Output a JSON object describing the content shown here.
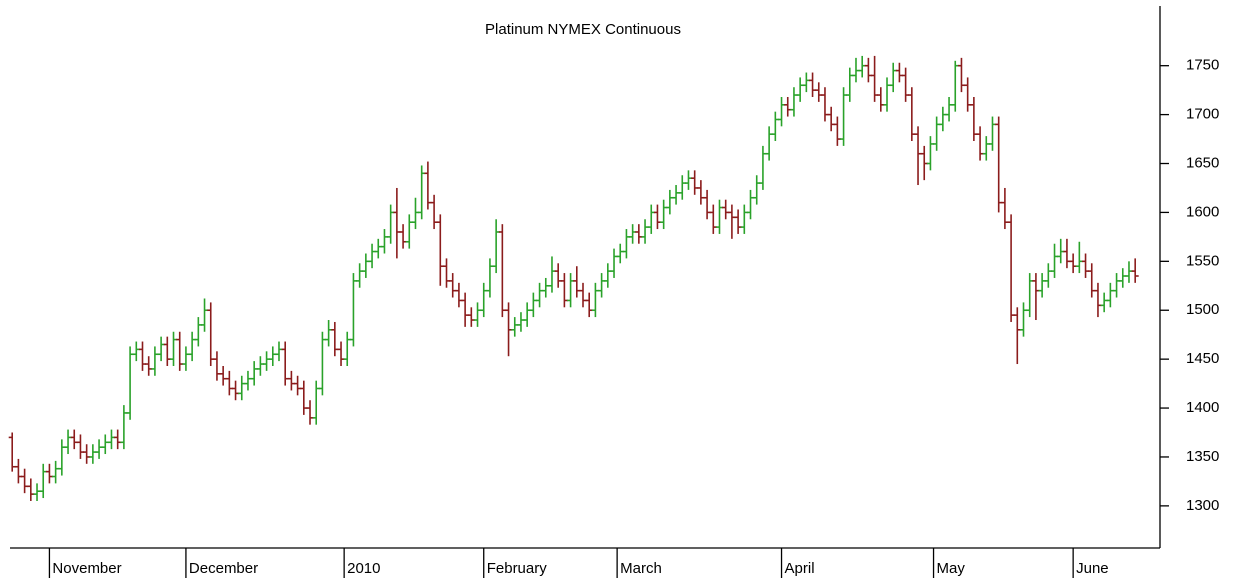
{
  "chart_data": {
    "type": "ohlc",
    "title": "Platinum NYMEX Continuous",
    "up_color": "#2aa22a",
    "down_color": "#8b1c1c",
    "xlim": [
      -1,
      185
    ],
    "xticks": [
      {
        "value": 6,
        "label": "November"
      },
      {
        "value": 28,
        "label": "December"
      },
      {
        "value": 53.5,
        "label": "2010"
      },
      {
        "value": 76,
        "label": "February"
      },
      {
        "value": 97.5,
        "label": "March"
      },
      {
        "value": 124,
        "label": "April"
      },
      {
        "value": 148.5,
        "label": "May"
      },
      {
        "value": 171,
        "label": "June"
      }
    ],
    "ylim": [
      1260,
      1810
    ],
    "yticks": [
      1300,
      1350,
      1400,
      1450,
      1500,
      1550,
      1600,
      1650,
      1700,
      1750
    ],
    "ohlc": [
      [
        1370,
        1375,
        1335,
        1340
      ],
      [
        1340,
        1348,
        1323,
        1330
      ],
      [
        1330,
        1338,
        1313,
        1320
      ],
      [
        1320,
        1328,
        1305,
        1312
      ],
      [
        1312,
        1323,
        1305,
        1315
      ],
      [
        1315,
        1343,
        1308,
        1335
      ],
      [
        1335,
        1343,
        1323,
        1330
      ],
      [
        1330,
        1346,
        1323,
        1338
      ],
      [
        1338,
        1368,
        1331,
        1360
      ],
      [
        1360,
        1378,
        1353,
        1370
      ],
      [
        1370,
        1378,
        1358,
        1365
      ],
      [
        1365,
        1373,
        1348,
        1355
      ],
      [
        1355,
        1363,
        1343,
        1350
      ],
      [
        1350,
        1363,
        1343,
        1355
      ],
      [
        1355,
        1368,
        1348,
        1360
      ],
      [
        1360,
        1373,
        1353,
        1365
      ],
      [
        1365,
        1378,
        1358,
        1370
      ],
      [
        1370,
        1378,
        1358,
        1365
      ],
      [
        1365,
        1403,
        1358,
        1395
      ],
      [
        1395,
        1463,
        1388,
        1455
      ],
      [
        1455,
        1468,
        1448,
        1460
      ],
      [
        1460,
        1468,
        1438,
        1445
      ],
      [
        1445,
        1453,
        1433,
        1440
      ],
      [
        1440,
        1463,
        1433,
        1455
      ],
      [
        1455,
        1473,
        1448,
        1465
      ],
      [
        1465,
        1473,
        1443,
        1450
      ],
      [
        1450,
        1478,
        1443,
        1470
      ],
      [
        1470,
        1478,
        1438,
        1445
      ],
      [
        1445,
        1463,
        1438,
        1455
      ],
      [
        1455,
        1478,
        1448,
        1470
      ],
      [
        1470,
        1493,
        1463,
        1485
      ],
      [
        1485,
        1512,
        1478,
        1500
      ],
      [
        1500,
        1508,
        1443,
        1450
      ],
      [
        1450,
        1458,
        1428,
        1435
      ],
      [
        1435,
        1443,
        1423,
        1430
      ],
      [
        1430,
        1438,
        1413,
        1420
      ],
      [
        1420,
        1428,
        1408,
        1415
      ],
      [
        1415,
        1433,
        1408,
        1425
      ],
      [
        1425,
        1438,
        1418,
        1430
      ],
      [
        1430,
        1448,
        1423,
        1440
      ],
      [
        1440,
        1453,
        1433,
        1445
      ],
      [
        1445,
        1458,
        1438,
        1450
      ],
      [
        1450,
        1463,
        1443,
        1455
      ],
      [
        1455,
        1468,
        1448,
        1460
      ],
      [
        1460,
        1468,
        1423,
        1430
      ],
      [
        1430,
        1438,
        1418,
        1425
      ],
      [
        1425,
        1433,
        1413,
        1420
      ],
      [
        1420,
        1428,
        1393,
        1400
      ],
      [
        1400,
        1408,
        1383,
        1390
      ],
      [
        1390,
        1428,
        1383,
        1420
      ],
      [
        1420,
        1478,
        1413,
        1470
      ],
      [
        1470,
        1490,
        1463,
        1480
      ],
      [
        1480,
        1488,
        1453,
        1460
      ],
      [
        1460,
        1468,
        1443,
        1450
      ],
      [
        1450,
        1478,
        1443,
        1470
      ],
      [
        1470,
        1538,
        1463,
        1530
      ],
      [
        1530,
        1548,
        1523,
        1540
      ],
      [
        1540,
        1558,
        1533,
        1550
      ],
      [
        1550,
        1568,
        1543,
        1560
      ],
      [
        1560,
        1573,
        1553,
        1565
      ],
      [
        1565,
        1583,
        1558,
        1575
      ],
      [
        1575,
        1608,
        1568,
        1600
      ],
      [
        1600,
        1625,
        1553,
        1580
      ],
      [
        1580,
        1588,
        1563,
        1570
      ],
      [
        1570,
        1598,
        1563,
        1590
      ],
      [
        1590,
        1615,
        1583,
        1600
      ],
      [
        1600,
        1648,
        1593,
        1640
      ],
      [
        1640,
        1652,
        1603,
        1610
      ],
      [
        1610,
        1618,
        1583,
        1590
      ],
      [
        1590,
        1598,
        1525,
        1545
      ],
      [
        1545,
        1553,
        1523,
        1530
      ],
      [
        1530,
        1538,
        1513,
        1520
      ],
      [
        1520,
        1528,
        1503,
        1510
      ],
      [
        1510,
        1518,
        1483,
        1495
      ],
      [
        1495,
        1503,
        1483,
        1490
      ],
      [
        1490,
        1508,
        1483,
        1500
      ],
      [
        1500,
        1528,
        1493,
        1520
      ],
      [
        1520,
        1553,
        1513,
        1545
      ],
      [
        1545,
        1593,
        1538,
        1580
      ],
      [
        1580,
        1588,
        1493,
        1500
      ],
      [
        1500,
        1508,
        1453,
        1480
      ],
      [
        1480,
        1493,
        1473,
        1485
      ],
      [
        1485,
        1498,
        1478,
        1490
      ],
      [
        1490,
        1508,
        1483,
        1500
      ],
      [
        1500,
        1518,
        1493,
        1510
      ],
      [
        1510,
        1528,
        1503,
        1520
      ],
      [
        1520,
        1533,
        1513,
        1525
      ],
      [
        1525,
        1555,
        1518,
        1540
      ],
      [
        1540,
        1548,
        1523,
        1530
      ],
      [
        1530,
        1538,
        1503,
        1510
      ],
      [
        1510,
        1538,
        1503,
        1530
      ],
      [
        1530,
        1545,
        1513,
        1520
      ],
      [
        1520,
        1528,
        1503,
        1510
      ],
      [
        1510,
        1518,
        1493,
        1500
      ],
      [
        1500,
        1528,
        1493,
        1520
      ],
      [
        1520,
        1538,
        1513,
        1530
      ],
      [
        1530,
        1548,
        1523,
        1540
      ],
      [
        1540,
        1563,
        1533,
        1555
      ],
      [
        1555,
        1568,
        1548,
        1560
      ],
      [
        1560,
        1583,
        1553,
        1575
      ],
      [
        1575,
        1588,
        1568,
        1580
      ],
      [
        1580,
        1588,
        1568,
        1575
      ],
      [
        1575,
        1593,
        1568,
        1585
      ],
      [
        1585,
        1608,
        1578,
        1600
      ],
      [
        1600,
        1608,
        1583,
        1590
      ],
      [
        1590,
        1613,
        1583,
        1605
      ],
      [
        1605,
        1623,
        1598,
        1615
      ],
      [
        1615,
        1628,
        1608,
        1620
      ],
      [
        1620,
        1638,
        1613,
        1630
      ],
      [
        1630,
        1643,
        1623,
        1635
      ],
      [
        1635,
        1643,
        1618,
        1625
      ],
      [
        1625,
        1633,
        1608,
        1615
      ],
      [
        1615,
        1623,
        1593,
        1600
      ],
      [
        1600,
        1608,
        1578,
        1585
      ],
      [
        1585,
        1613,
        1578,
        1605
      ],
      [
        1605,
        1613,
        1593,
        1600
      ],
      [
        1600,
        1608,
        1573,
        1595
      ],
      [
        1595,
        1603,
        1578,
        1585
      ],
      [
        1585,
        1608,
        1578,
        1600
      ],
      [
        1600,
        1623,
        1593,
        1615
      ],
      [
        1615,
        1638,
        1608,
        1630
      ],
      [
        1630,
        1668,
        1623,
        1660
      ],
      [
        1660,
        1688,
        1653,
        1680
      ],
      [
        1680,
        1703,
        1673,
        1695
      ],
      [
        1695,
        1718,
        1688,
        1710
      ],
      [
        1710,
        1718,
        1698,
        1705
      ],
      [
        1705,
        1728,
        1698,
        1720
      ],
      [
        1720,
        1738,
        1713,
        1730
      ],
      [
        1730,
        1743,
        1723,
        1735
      ],
      [
        1735,
        1743,
        1718,
        1725
      ],
      [
        1725,
        1733,
        1713,
        1720
      ],
      [
        1720,
        1728,
        1693,
        1700
      ],
      [
        1700,
        1708,
        1683,
        1690
      ],
      [
        1690,
        1698,
        1668,
        1675
      ],
      [
        1675,
        1728,
        1668,
        1720
      ],
      [
        1720,
        1748,
        1713,
        1740
      ],
      [
        1740,
        1758,
        1733,
        1745
      ],
      [
        1745,
        1760,
        1738,
        1750
      ],
      [
        1750,
        1758,
        1733,
        1740
      ],
      [
        1740,
        1760,
        1713,
        1720
      ],
      [
        1720,
        1728,
        1703,
        1710
      ],
      [
        1710,
        1738,
        1703,
        1730
      ],
      [
        1730,
        1753,
        1723,
        1745
      ],
      [
        1745,
        1753,
        1733,
        1740
      ],
      [
        1740,
        1748,
        1713,
        1720
      ],
      [
        1720,
        1728,
        1673,
        1680
      ],
      [
        1680,
        1688,
        1628,
        1660
      ],
      [
        1660,
        1668,
        1633,
        1650
      ],
      [
        1650,
        1678,
        1643,
        1670
      ],
      [
        1670,
        1698,
        1663,
        1690
      ],
      [
        1690,
        1708,
        1683,
        1700
      ],
      [
        1700,
        1718,
        1693,
        1710
      ],
      [
        1710,
        1755,
        1703,
        1750
      ],
      [
        1750,
        1758,
        1723,
        1730
      ],
      [
        1730,
        1738,
        1703,
        1710
      ],
      [
        1710,
        1718,
        1673,
        1680
      ],
      [
        1680,
        1688,
        1653,
        1660
      ],
      [
        1660,
        1678,
        1653,
        1670
      ],
      [
        1670,
        1698,
        1663,
        1690
      ],
      [
        1690,
        1698,
        1600,
        1610
      ],
      [
        1610,
        1625,
        1583,
        1590
      ],
      [
        1590,
        1598,
        1488,
        1495
      ],
      [
        1495,
        1503,
        1445,
        1480
      ],
      [
        1480,
        1508,
        1473,
        1500
      ],
      [
        1500,
        1538,
        1493,
        1530
      ],
      [
        1530,
        1538,
        1490,
        1520
      ],
      [
        1520,
        1538,
        1513,
        1530
      ],
      [
        1530,
        1548,
        1523,
        1540
      ],
      [
        1540,
        1568,
        1533,
        1555
      ],
      [
        1555,
        1573,
        1548,
        1560
      ],
      [
        1560,
        1573,
        1543,
        1550
      ],
      [
        1550,
        1558,
        1538,
        1545
      ],
      [
        1545,
        1570,
        1538,
        1550
      ],
      [
        1550,
        1558,
        1533,
        1540
      ],
      [
        1540,
        1548,
        1513,
        1520
      ],
      [
        1520,
        1528,
        1493,
        1505
      ],
      [
        1505,
        1518,
        1498,
        1510
      ],
      [
        1510,
        1528,
        1503,
        1520
      ],
      [
        1520,
        1538,
        1513,
        1530
      ],
      [
        1530,
        1543,
        1523,
        1535
      ],
      [
        1535,
        1550,
        1528,
        1540
      ],
      [
        1540,
        1553,
        1528,
        1535
      ]
    ]
  }
}
